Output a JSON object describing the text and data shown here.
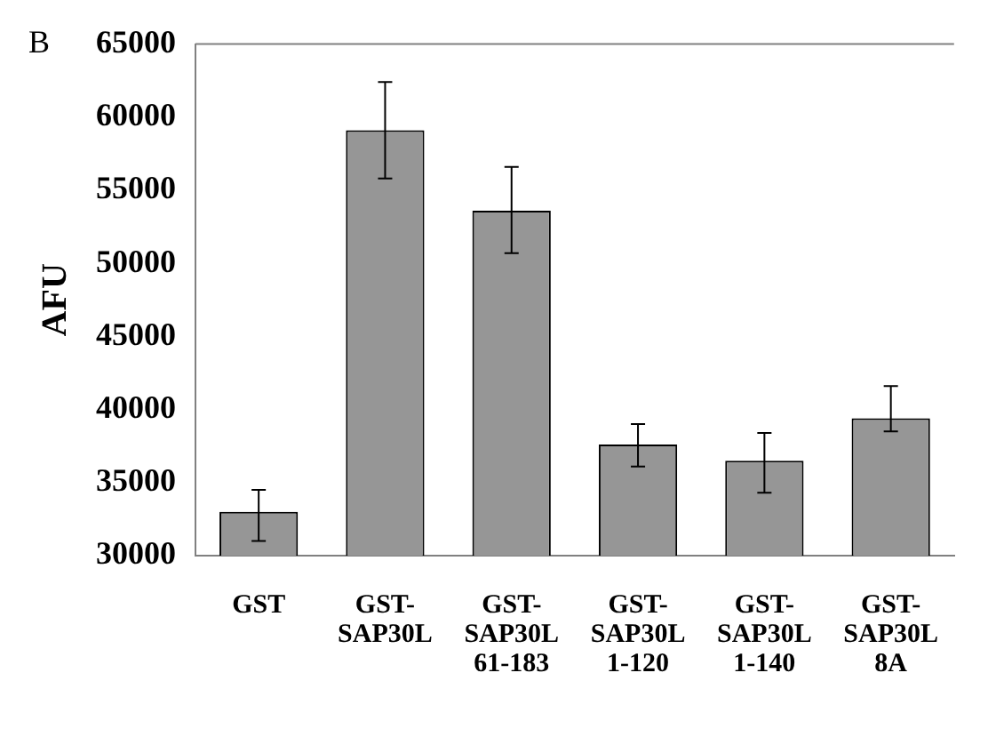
{
  "chart_data": {
    "type": "bar",
    "ylabel": "AFU",
    "annotations": [
      "B"
    ],
    "categories": [
      "GST",
      "GST-\nSAP30L",
      "GST-\nSAP30L\n61-183",
      "GST-\nSAP30L\n1-120",
      "GST-\nSAP30L\n1-140",
      "GST-\nSAP30L\n8A"
    ],
    "values": [
      33000,
      59100,
      53600,
      37600,
      36500,
      39400
    ],
    "errors": [
      [
        31000,
        34500
      ],
      [
        55800,
        62400
      ],
      [
        50700,
        56600
      ],
      [
        36100,
        39000
      ],
      [
        34300,
        38400
      ],
      [
        38500,
        41600
      ]
    ],
    "color": "#969696",
    "ylim": [
      30000,
      65000
    ],
    "yticks": [
      30000,
      35000,
      40000,
      45000,
      50000,
      55000,
      60000,
      65000
    ],
    "grid": false,
    "legend": false
  }
}
